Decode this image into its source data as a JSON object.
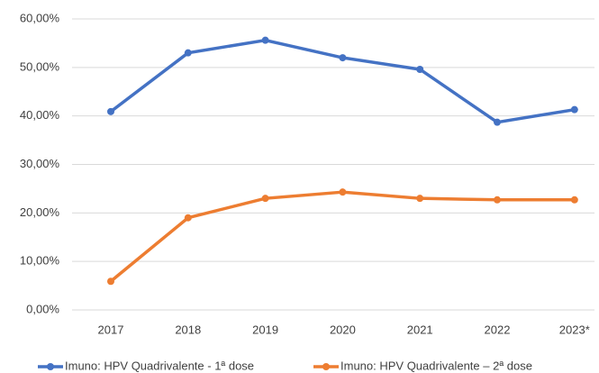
{
  "chart_data": {
    "type": "line",
    "categories": [
      "2017",
      "2018",
      "2019",
      "2020",
      "2021",
      "2022",
      "2023*"
    ],
    "series": [
      {
        "name": "Imuno: HPV Quadrivalente - 1ª dose",
        "color": "#4472c4",
        "values": [
          40.9,
          53.0,
          55.6,
          52.0,
          49.6,
          38.7,
          41.3
        ]
      },
      {
        "name": "Imuno: HPV Quadrivalente – 2ª dose",
        "color": "#ed7d31",
        "values": [
          5.9,
          19.0,
          23.0,
          24.3,
          23.0,
          22.7,
          22.7
        ]
      }
    ],
    "ylim": [
      0,
      60
    ],
    "yticks": [
      {
        "value": 0,
        "label": "0,00%"
      },
      {
        "value": 10,
        "label": "10,00%"
      },
      {
        "value": 20,
        "label": "20,00%"
      },
      {
        "value": 30,
        "label": "30,00%"
      },
      {
        "value": 40,
        "label": "40,00%"
      },
      {
        "value": 50,
        "label": "50,00%"
      },
      {
        "value": 60,
        "label": "60,00%"
      }
    ],
    "grid": true,
    "legend": "bottom"
  }
}
